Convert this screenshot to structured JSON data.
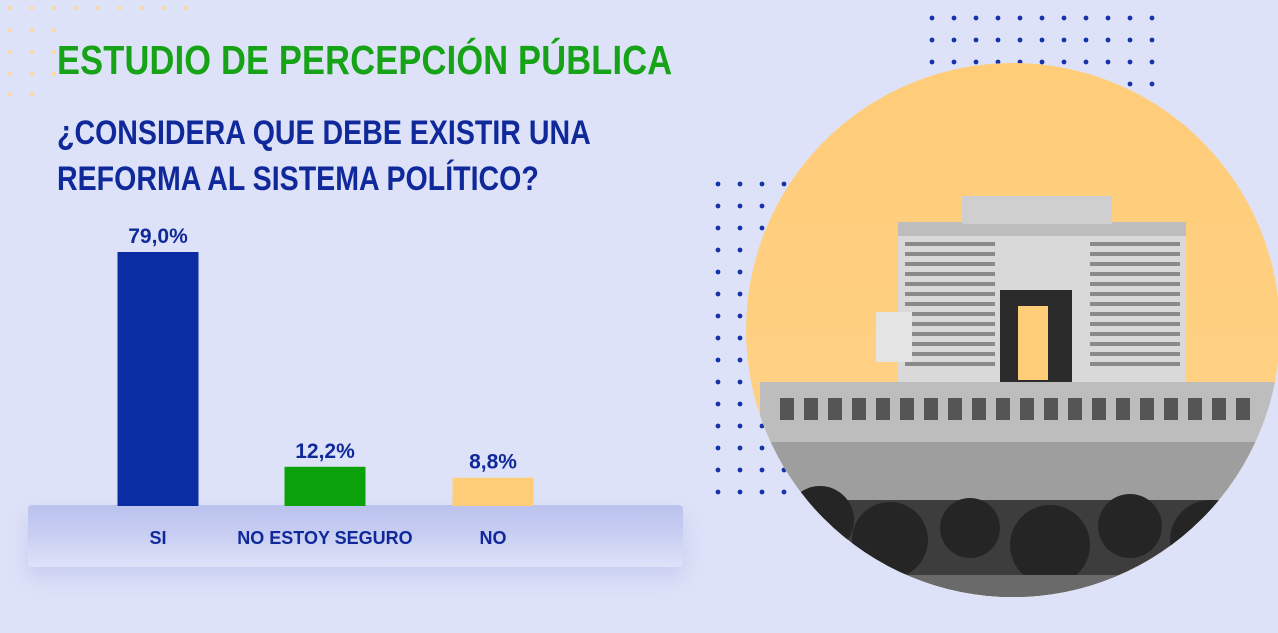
{
  "header": {
    "kicker": "ESTUDIO DE PERCEPCIÓN PÚBLICA",
    "question_line_1": "¿CONSIDERA QUE DEBE EXISTIR UNA",
    "question_line_2": "REFORMA AL SISTEMA POLÍTICO?"
  },
  "colors": {
    "background": "#dee2f8",
    "kicker": "#17a317",
    "question": "#10299a",
    "circle": "#ffcc78",
    "dots": "#1532a8"
  },
  "chart_data": {
    "type": "bar",
    "categories": [
      "SI",
      "NO ESTOY SEGURO",
      "NO"
    ],
    "values": [
      79.0,
      12.2,
      8.8
    ],
    "value_labels": [
      "79,0%",
      "12,2%",
      "8,8%"
    ],
    "bar_colors": [
      "#0a2da3",
      "#0aa10a",
      "#ffcc78"
    ],
    "unit": "%",
    "ylim": [
      0,
      79.0
    ],
    "grid": false,
    "legend": "none"
  },
  "illustration": {
    "icon": "congress-building-photo",
    "description_icon": "dotted-pattern"
  }
}
